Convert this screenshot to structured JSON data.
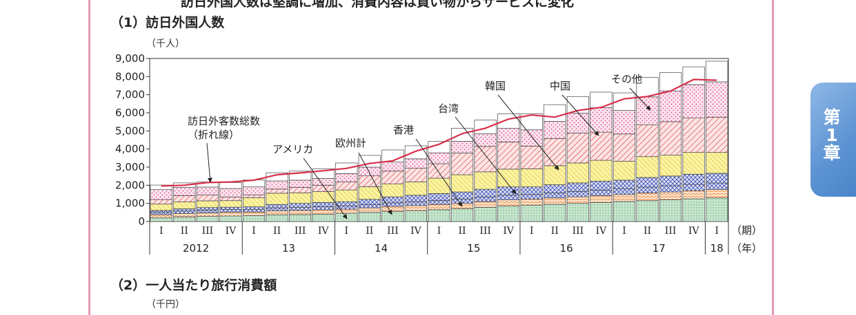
{
  "header_text": "訪日外国人数は堅調に増加、消費内容は買い物からサービスに変化",
  "section1_title": "（1）訪日外国人数",
  "section2_title": "（2）一人当たり旅行消費額",
  "section2_unit": "（千円）",
  "chapter_tab": {
    "line1": "第",
    "line2": "1",
    "line3": "章"
  },
  "colors": {
    "frame": "#e59ab8",
    "total_line": "#d8304a",
    "tab": "#5c93d3"
  },
  "chart_data": {
    "type": "bar",
    "stacked": true,
    "unit_label": "（千人）",
    "ylim": [
      0,
      9000
    ],
    "yticks": [
      "0",
      "1,000",
      "2,000",
      "3,000",
      "4,000",
      "5,000",
      "6,000",
      "7,000",
      "8,000",
      "9,000"
    ],
    "yticks_values": [
      0,
      1000,
      2000,
      3000,
      4000,
      5000,
      6000,
      7000,
      8000,
      9000
    ],
    "quarter_labels": [
      "I",
      "II",
      "III",
      "IV",
      "I",
      "II",
      "III",
      "IV",
      "I",
      "II",
      "III",
      "IV",
      "I",
      "II",
      "III",
      "IV",
      "I",
      "II",
      "III",
      "IV",
      "I",
      "II",
      "III",
      "IV",
      "I"
    ],
    "period_label": "（期）",
    "year_axis_label": "（年）",
    "years": [
      {
        "label": "2012",
        "quarters": 4
      },
      {
        "label": "13",
        "quarters": 4
      },
      {
        "label": "14",
        "quarters": 4
      },
      {
        "label": "15",
        "quarters": 4
      },
      {
        "label": "16",
        "quarters": 4
      },
      {
        "label": "17",
        "quarters": 4
      },
      {
        "label": "18",
        "quarters": 1
      }
    ],
    "series": [
      {
        "name": "その他",
        "values": [
          200,
          250,
          280,
          300,
          320,
          370,
          380,
          400,
          450,
          500,
          560,
          600,
          650,
          700,
          780,
          850,
          900,
          950,
          1000,
          1050,
          1100,
          1150,
          1200,
          1250,
          1300
        ]
      },
      {
        "name": "アメリカ",
        "values": [
          180,
          190,
          200,
          210,
          200,
          220,
          230,
          240,
          230,
          250,
          270,
          280,
          290,
          300,
          320,
          340,
          330,
          350,
          360,
          380,
          390,
          420,
          430,
          450,
          460
        ]
      },
      {
        "name": "欧州計",
        "values": [
          130,
          140,
          150,
          150,
          140,
          160,
          170,
          180,
          170,
          190,
          200,
          210,
          220,
          240,
          250,
          260,
          260,
          280,
          290,
          300,
          310,
          330,
          340,
          350,
          360
        ]
      },
      {
        "name": "香港",
        "values": [
          100,
          120,
          140,
          130,
          150,
          190,
          220,
          230,
          240,
          280,
          330,
          360,
          380,
          390,
          430,
          460,
          420,
          450,
          480,
          500,
          480,
          530,
          540,
          560,
          540
        ]
      },
      {
        "name": "台湾",
        "values": [
          350,
          380,
          370,
          360,
          500,
          620,
          580,
          600,
          650,
          700,
          720,
          740,
          850,
          950,
          960,
          980,
          1000,
          1050,
          1100,
          1150,
          1050,
          1150,
          1150,
          1200,
          1150
        ]
      },
      {
        "name": "中国",
        "values": [
          250,
          350,
          320,
          200,
          150,
          230,
          300,
          350,
          450,
          600,
          700,
          750,
          800,
          1200,
          1400,
          1500,
          1250,
          1500,
          1650,
          1550,
          1500,
          1750,
          1850,
          1900,
          1950
        ]
      },
      {
        "name": "韓国",
        "values": [
          550,
          450,
          440,
          470,
          450,
          450,
          400,
          380,
          450,
          480,
          500,
          520,
          600,
          650,
          700,
          750,
          900,
          950,
          1100,
          1350,
          1300,
          1550,
          1700,
          1850,
          1950
        ]
      },
      {
        "name": "その他",
        "values": [
          250,
          250,
          280,
          330,
          380,
          450,
          500,
          530,
          590,
          650,
          670,
          720,
          630,
          720,
          760,
          800,
          880,
          920,
          920,
          860,
          970,
          1080,
          1010,
          980,
          1140
        ]
      }
    ],
    "total_line": {
      "name": "訪日外客数総数",
      "values": [
        1960,
        2000,
        2150,
        2180,
        2280,
        2580,
        2680,
        2800,
        2930,
        3200,
        3350,
        3880,
        4260,
        4850,
        5150,
        5650,
        5880,
        5760,
        6130,
        6300,
        6770,
        6900,
        7200,
        7840,
        7800
      ]
    },
    "annotations": [
      {
        "text": "訪日外客数総数",
        "text2": "（折れ線）"
      },
      {
        "text": "アメリカ"
      },
      {
        "text": "欧州計"
      },
      {
        "text": "香港"
      },
      {
        "text": "台湾"
      },
      {
        "text": "韓国"
      },
      {
        "text": "中国"
      },
      {
        "text": "その他"
      }
    ]
  }
}
